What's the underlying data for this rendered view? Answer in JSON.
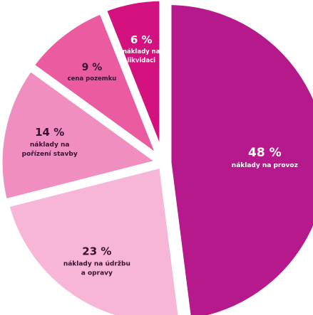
{
  "chart_data": {
    "type": "pie",
    "title": "",
    "slices": [
      {
        "value": 48,
        "percent_label": "48 %",
        "label_lines": [
          "náklady na provoz"
        ],
        "color": "#b5198c",
        "text_color": "#ffffff"
      },
      {
        "value": 23,
        "percent_label": "23 %",
        "label_lines": [
          "náklady na údržbu",
          "a opravy"
        ],
        "color": "#f7b6d5",
        "text_color": "#3a1030"
      },
      {
        "value": 14,
        "percent_label": "14 %",
        "label_lines": [
          "náklady na",
          "pořízení stavby"
        ],
        "color": "#f08fbf",
        "text_color": "#3a1030"
      },
      {
        "value": 9,
        "percent_label": "9 %",
        "label_lines": [
          "cena pozemku"
        ],
        "color": "#ea5c9f",
        "text_color": "#3a1030"
      },
      {
        "value": 6,
        "percent_label": "6 %",
        "label_lines": [
          "náklady na",
          "likvidaci"
        ],
        "color": "#d4127f",
        "text_color": "#ffffff"
      }
    ]
  }
}
